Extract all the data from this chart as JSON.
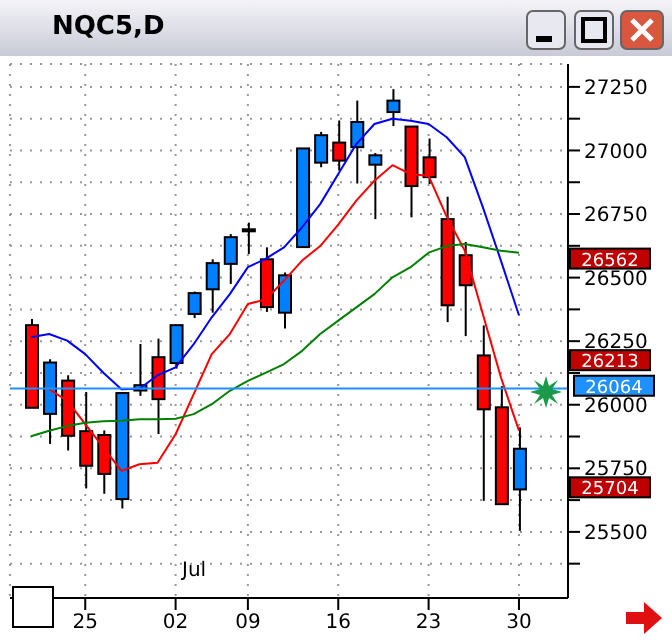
{
  "chart_data": {
    "type": "candlestick",
    "title": "NQC5,D",
    "categories": [
      null,
      null,
      null,
      "25",
      null,
      null,
      null,
      null,
      "02",
      null,
      null,
      null,
      "09",
      null,
      null,
      null,
      null,
      "16",
      null,
      null,
      null,
      null,
      "23",
      null,
      null,
      null,
      null,
      "30"
    ],
    "ohlc": [
      [
        26313,
        26337,
        25988,
        25988
      ],
      [
        25964,
        26179,
        25846,
        26166
      ],
      [
        26095,
        26116,
        25820,
        25878
      ],
      [
        25896,
        26050,
        25671,
        25760
      ],
      [
        25881,
        25899,
        25650,
        25728
      ],
      [
        25629,
        26050,
        25592,
        26046
      ],
      [
        26056,
        26239,
        26035,
        26077
      ],
      [
        26187,
        26260,
        25885,
        26022
      ],
      [
        26164,
        26313,
        26142,
        26313
      ],
      [
        26357,
        26445,
        26341,
        26439
      ],
      [
        26454,
        26572,
        26362,
        26557
      ],
      [
        26554,
        26671,
        26475,
        26659
      ],
      [
        26682,
        26716,
        26593,
        26690
      ],
      [
        26572,
        26619,
        26365,
        26384
      ],
      [
        26362,
        26520,
        26300,
        26509
      ],
      [
        26620,
        27008,
        26620,
        27008
      ],
      [
        26952,
        27073,
        26934,
        27060
      ],
      [
        27031,
        27118,
        26921,
        26960
      ],
      [
        27013,
        27196,
        26870,
        27112
      ],
      [
        26944,
        26990,
        26730,
        26981
      ],
      [
        27151,
        27241,
        27096,
        27196
      ],
      [
        27094,
        27094,
        26737,
        26860
      ],
      [
        26973,
        27047,
        26868,
        26895
      ],
      [
        26730,
        26818,
        26325,
        26391
      ],
      [
        26588,
        26640,
        26270,
        26470
      ],
      [
        26194,
        26312,
        25622,
        25982
      ],
      [
        25990,
        26073,
        25609,
        25609
      ],
      [
        25667,
        25911,
        25504,
        25827
      ]
    ],
    "colors": [
      "#ff0000",
      "#0080ff",
      "#ff0000",
      "#ff0000",
      "#ff0000",
      "#0080ff",
      "#0080ff",
      "#ff0000",
      "#0080ff",
      "#0080ff",
      "#0080ff",
      "#0080ff",
      "#0080ff",
      "#ff0000",
      "#0080ff",
      "#0080ff",
      "#0080ff",
      "#ff0000",
      "#0080ff",
      "#0080ff",
      "#0080ff",
      "#ff0000",
      "#ff0000",
      "#ff0000",
      "#ff0000",
      "#ff0000",
      "#ff0000",
      "#0080ff"
    ],
    "series": [
      {
        "type": "line",
        "color": "#0000ff",
        "values": [
          26265,
          26278,
          26252,
          26199,
          26126,
          26061,
          26063,
          26116,
          26147,
          26238,
          26344,
          26435,
          26541,
          26575,
          26619,
          26698,
          26789,
          26907,
          27025,
          27104,
          27125,
          27117,
          27104,
          27052,
          26974,
          26777,
          26567,
          26352
        ]
      },
      {
        "type": "line",
        "color": "#ff0000",
        "values": [
          null,
          26061,
          26016,
          25924,
          25832,
          25740,
          25766,
          25772,
          25884,
          26042,
          26199,
          26278,
          26396,
          26415,
          26488,
          26567,
          26624,
          26708,
          26803,
          26881,
          26942,
          26907,
          26900,
          26740,
          26606,
          26357,
          26108,
          25898
        ]
      },
      {
        "type": "line",
        "color": "#008000",
        "values": [
          25876,
          25898,
          25916,
          25929,
          25935,
          25937,
          25943,
          25943,
          25945,
          25963,
          26002,
          26055,
          26094,
          26126,
          26160,
          26212,
          26278,
          26331,
          26383,
          26435,
          26501,
          26541,
          26598,
          26624,
          26632,
          26619,
          26606,
          26598
        ]
      }
    ],
    "ylim": [
      25240,
      27340
    ],
    "yticks": [
      {
        "value": 25375,
        "label": null
      },
      25500,
      {
        "value": 25625,
        "label": null
      },
      25750,
      {
        "value": 25875,
        "label": null
      },
      26000,
      {
        "value": 26125,
        "label": null
      },
      26250,
      {
        "value": 26375,
        "label": null
      },
      26500,
      {
        "value": 26625,
        "label": null
      },
      26750,
      {
        "value": 26875,
        "label": null
      },
      27000,
      {
        "value": 27125,
        "label": null
      },
      27250
    ],
    "ref_lines": [
      {
        "axis": "y",
        "value": 26064,
        "label": "26064",
        "color": "#1e90ff"
      }
    ],
    "annotations": [
      "Jul",
      "26562",
      "26213",
      "25704"
    ],
    "grid": true,
    "marker": "none",
    "line_style": "solid"
  }
}
